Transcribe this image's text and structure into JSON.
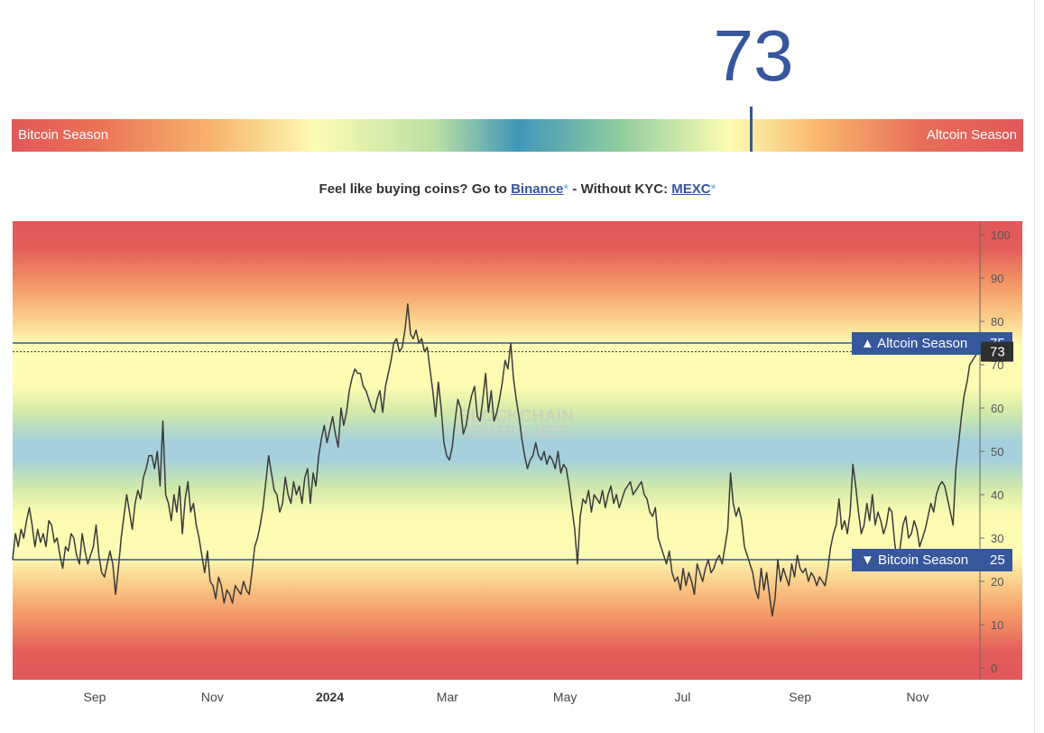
{
  "index": {
    "value": "73",
    "fraction": 0.73,
    "left_label": "Bitcoin Season",
    "right_label": "Altcoin Season"
  },
  "promo": {
    "prefix": "Feel like buying coins? Go to ",
    "link1": "Binance",
    "star": "*",
    "middle": " - Without KYC: ",
    "link2": "MEXC"
  },
  "watermark": {
    "line1": "BLOCKCHAIN",
    "line2": "CENTER.NET"
  },
  "chart_data": {
    "type": "line",
    "y_ticks": [
      0,
      10,
      20,
      30,
      40,
      50,
      60,
      70,
      80,
      90,
      100
    ],
    "ylim": [
      0,
      100
    ],
    "x_ticks": [
      "Sep",
      "Nov",
      "2024",
      "Mar",
      "May",
      "Jul",
      "Sep",
      "Nov"
    ],
    "x_tick_bold": "2024",
    "levels": {
      "altcoin": {
        "value": 75,
        "label": "▲ Altcoin Season",
        "num": "75"
      },
      "bitcoin": {
        "value": 25,
        "label": "▼ Bitcoin Season",
        "num": "25"
      }
    },
    "current_value": 73,
    "current_label": "73",
    "series": [
      {
        "values": [
          25,
          31,
          28,
          32,
          30,
          34,
          37,
          33,
          28,
          32,
          29,
          31,
          28,
          34,
          33,
          29,
          30,
          26,
          23,
          28,
          27,
          31,
          30,
          26,
          24,
          31,
          27,
          24,
          26,
          28,
          33,
          26,
          22,
          21,
          24,
          27,
          24,
          17,
          23,
          30,
          35,
          40,
          36,
          32,
          38,
          41,
          39,
          44,
          46,
          49,
          49,
          46,
          50,
          42,
          57,
          40,
          38,
          34,
          40,
          36,
          42,
          31,
          39,
          43,
          36,
          38,
          33,
          30,
          26,
          22,
          27,
          20,
          19,
          16,
          21,
          19,
          15,
          18,
          17,
          15,
          19,
          18,
          17,
          20,
          18,
          17,
          22,
          28,
          30,
          33,
          37,
          43,
          49,
          45,
          41,
          40,
          36,
          38,
          44,
          40,
          38,
          43,
          40,
          42,
          38,
          44,
          46,
          38,
          45,
          42,
          49,
          53,
          56,
          52,
          55,
          58,
          54,
          51,
          60,
          56,
          59,
          64,
          67,
          69,
          68,
          68,
          65,
          64,
          62,
          60,
          59,
          62,
          64,
          59,
          65,
          68,
          71,
          75,
          76,
          73,
          74,
          78,
          84,
          77,
          76,
          78,
          75,
          76,
          73,
          74,
          69,
          64,
          58,
          66,
          60,
          52,
          49,
          48,
          51,
          57,
          62,
          60,
          54,
          56,
          60,
          63,
          65,
          58,
          57,
          62,
          68,
          59,
          64,
          57,
          59,
          62,
          66,
          71,
          69,
          75,
          67,
          62,
          58,
          53,
          49,
          46,
          48,
          49,
          52,
          49,
          48,
          50,
          47,
          49,
          48,
          46,
          50,
          45,
          47,
          46,
          42,
          37,
          32,
          24,
          35,
          39,
          38,
          41,
          36,
          40,
          39,
          38,
          41,
          37,
          40,
          42,
          38,
          40,
          37,
          39,
          41,
          42,
          43,
          40,
          41,
          42,
          43,
          40,
          39,
          36,
          35,
          37,
          30,
          28,
          26,
          24,
          27,
          22,
          20,
          21,
          18,
          23,
          19,
          22,
          20,
          17,
          24,
          22,
          20,
          23,
          25,
          22,
          23,
          25,
          26,
          24,
          28,
          32,
          45,
          38,
          35,
          37,
          34,
          28,
          26,
          24,
          22,
          18,
          16,
          23,
          18,
          22,
          17,
          12,
          16,
          25,
          20,
          23,
          21,
          19,
          24,
          21,
          26,
          23,
          22,
          23,
          20,
          22,
          21,
          19,
          21,
          20,
          19,
          23,
          28,
          31,
          33,
          39,
          32,
          34,
          31,
          36,
          47,
          42,
          36,
          31,
          33,
          38,
          34,
          40,
          33,
          36,
          34,
          31,
          33,
          37,
          36,
          29,
          24,
          28,
          33,
          35,
          30,
          31,
          34,
          32,
          28,
          30,
          32,
          35,
          38,
          36,
          40,
          42,
          43,
          42,
          39,
          36,
          33,
          46,
          52,
          58,
          63,
          66,
          70,
          71,
          72,
          73
        ]
      }
    ]
  },
  "colors": {
    "accent": "#36579c",
    "line": "#3b3b3b",
    "axis": "#555555",
    "current_badge": "#2f2f2f",
    "band_red": "#e05859",
    "band_yellow": "#fdfcb4",
    "band_blue": "#a5d0dc"
  }
}
